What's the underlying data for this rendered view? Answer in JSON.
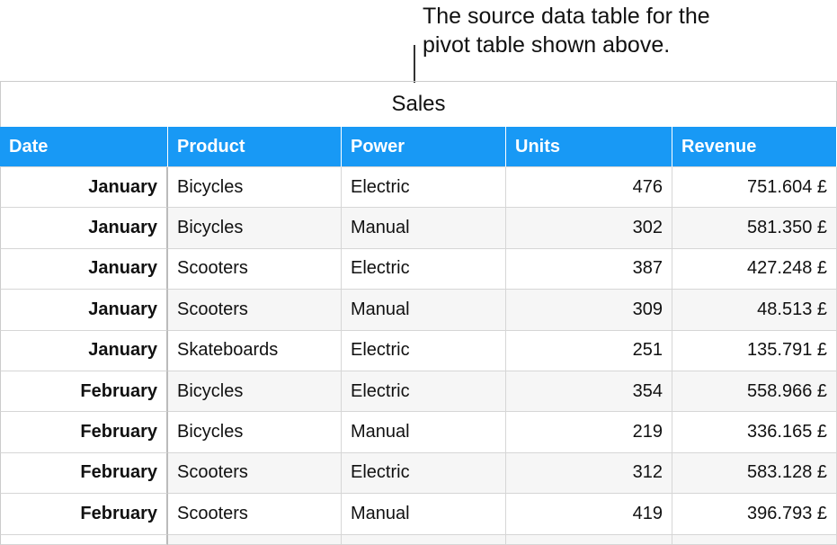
{
  "annotation": {
    "lines": [
      "The source data table for the",
      "pivot table shown above."
    ]
  },
  "table": {
    "title": "Sales",
    "headers": [
      "Date",
      "Product",
      "Power",
      "Units",
      "Revenue"
    ],
    "rows": [
      [
        "January",
        "Bicycles",
        "Electric",
        "476",
        "751.604 £"
      ],
      [
        "January",
        "Bicycles",
        "Manual",
        "302",
        "581.350 £"
      ],
      [
        "January",
        "Scooters",
        "Electric",
        "387",
        "427.248 £"
      ],
      [
        "January",
        "Scooters",
        "Manual",
        "309",
        "48.513 £"
      ],
      [
        "January",
        "Skateboards",
        "Electric",
        "251",
        "135.791 £"
      ],
      [
        "February",
        "Bicycles",
        "Electric",
        "354",
        "558.966 £"
      ],
      [
        "February",
        "Bicycles",
        "Manual",
        "219",
        "336.165 £"
      ],
      [
        "February",
        "Scooters",
        "Electric",
        "312",
        "583.128 £"
      ],
      [
        "February",
        "Scooters",
        "Manual",
        "419",
        "396.793 £"
      ]
    ]
  }
}
